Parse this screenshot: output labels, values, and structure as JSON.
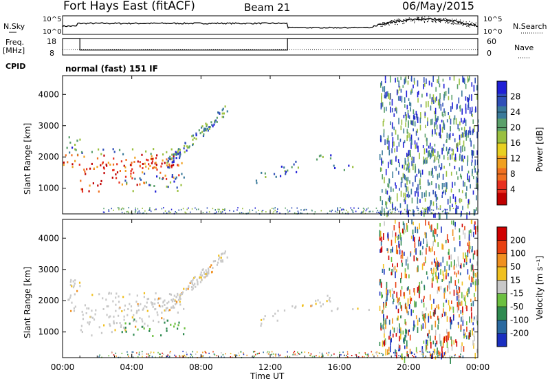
{
  "header": {
    "station": "Fort Hays East (fitACF)",
    "beam": "Beam 21",
    "date": "06/May/2015"
  },
  "top_panel": {
    "nsky_label": "N.Sky",
    "nsearch_label": "N.Search",
    "left_ticks": [
      "10^5",
      "10^0"
    ],
    "right_ticks": [
      "10^5",
      "10^0"
    ],
    "freq_label": "Freq.",
    "freq_unit": "[MHz]",
    "freq_ticks": [
      "18",
      "8"
    ],
    "nave_label": "Nave",
    "nave_ticks": [
      "60",
      "0"
    ],
    "cpid_label": "CPID",
    "cpid_text": "normal (fast) 151 IF"
  },
  "power_panel": {
    "ylabel": "Slant Range [km]",
    "yticks": [
      "4000",
      "3000",
      "2000",
      "1000"
    ],
    "colorbar_label": "Power [dB]",
    "colorbar_ticks": [
      "28",
      "24",
      "20",
      "16",
      "12",
      "8",
      "4"
    ],
    "colors": [
      "#1f1fd6",
      "#3050b8",
      "#3a7a9a",
      "#5aa06a",
      "#9ac040",
      "#e8d020",
      "#f0a020",
      "#f07020",
      "#e83020",
      "#c00000"
    ]
  },
  "velocity_panel": {
    "ylabel": "Slant Range [km]",
    "yticks": [
      "4000",
      "3000",
      "2000",
      "1000"
    ],
    "colorbar_label": "Velocity [m s⁻¹]",
    "colorbar_ticks": [
      "200",
      "100",
      "50",
      "15",
      "-15",
      "-50",
      "-100",
      "-200"
    ],
    "colors": [
      "#1a2fc0",
      "#2a6aa0",
      "#2f8a50",
      "#6cc040",
      "#c8c8c8",
      "#f0c020",
      "#f09020",
      "#e84010",
      "#d00000"
    ]
  },
  "x_axis": {
    "ticks": [
      "00:00",
      "04:00",
      "08:00",
      "12:00",
      "16:00",
      "20:00",
      "00:00"
    ],
    "label": "Time UT"
  },
  "chart_data": [
    {
      "type": "line",
      "name_left": "N.Sky",
      "name_right": "N.Search",
      "x_range_hours": [
        0,
        24
      ],
      "ylim_log10": [
        0,
        5
      ]
    },
    {
      "type": "line",
      "left_axis": "Freq. [MHz]",
      "right_axis": "Nave",
      "freq_steps": [
        {
          "x": [
            0,
            1
          ],
          "value": 18
        },
        {
          "x": [
            1,
            13
          ],
          "value": 11
        },
        {
          "x": [
            13,
            24
          ],
          "value": 18
        }
      ],
      "freq_ylim": [
        8,
        18
      ],
      "nave_ylim": [
        0,
        60
      ]
    },
    {
      "type": "heatmap",
      "quantity": "Power [dB]",
      "x_range_hours": [
        0,
        24
      ],
      "y_range_km": [
        180,
        4600
      ],
      "color_range": [
        0,
        30
      ]
    },
    {
      "type": "heatmap",
      "quantity": "Velocity [m s-1]",
      "x_range_hours": [
        0,
        24
      ],
      "y_range_km": [
        180,
        4600
      ],
      "color_range": [
        -250,
        250
      ]
    }
  ]
}
